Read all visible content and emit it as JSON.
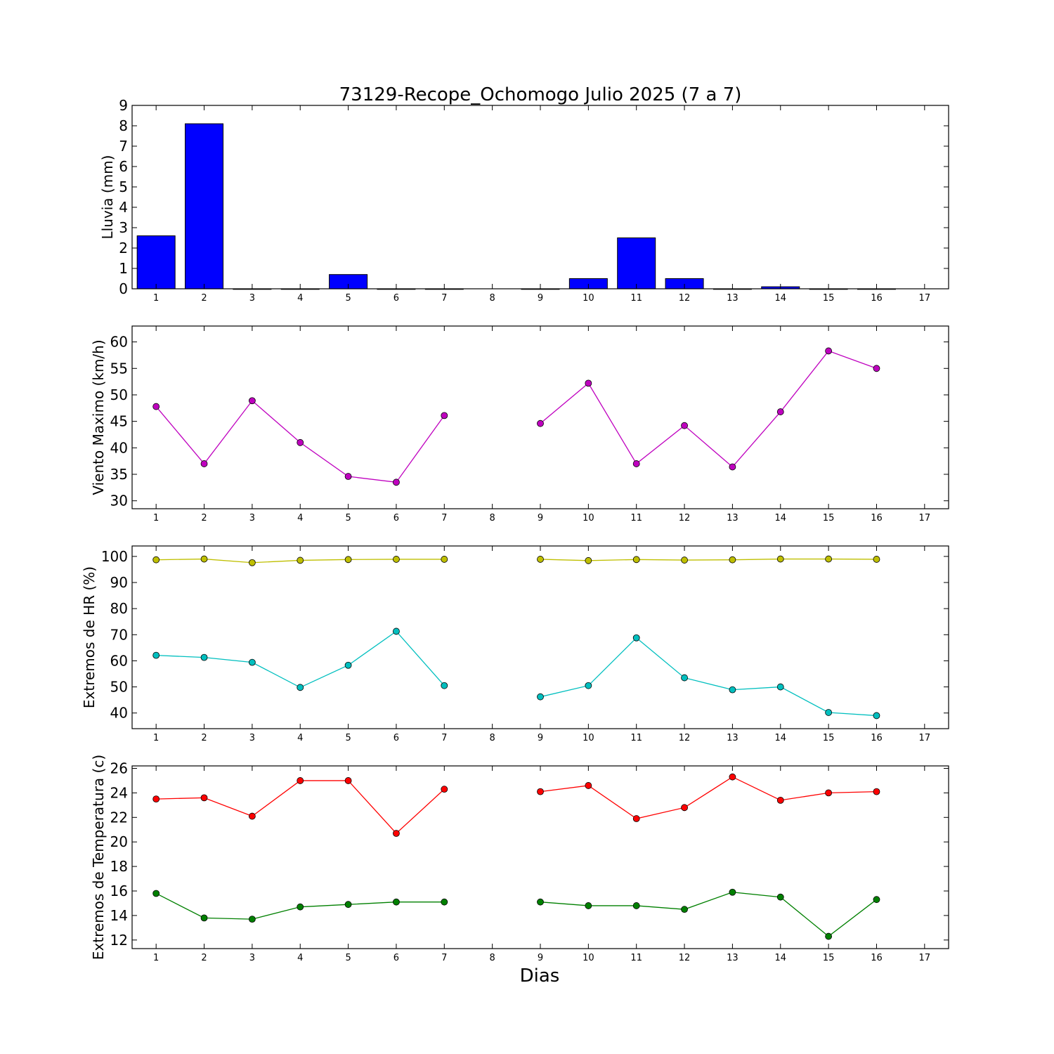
{
  "title": "73129-Recope_Ochomogo Julio 2025  (7 a 7)",
  "chart_data": [
    {
      "type": "bar",
      "ylabel": "Lluvia (mm)",
      "ylim": [
        0,
        9
      ],
      "yticks": [
        0,
        1,
        2,
        3,
        4,
        5,
        6,
        7,
        8,
        9
      ],
      "xlim": [
        0.5,
        17.5
      ],
      "xticks": [
        1,
        2,
        3,
        4,
        5,
        6,
        7,
        8,
        9,
        10,
        11,
        12,
        13,
        14,
        15,
        16,
        17
      ],
      "bar_color": "#0000ff",
      "x": [
        1,
        2,
        3,
        4,
        5,
        6,
        7,
        8,
        9,
        10,
        11,
        12,
        13,
        14,
        15,
        16
      ],
      "values": [
        2.6,
        8.1,
        0,
        0,
        0.7,
        0,
        0,
        null,
        0,
        0.5,
        2.5,
        0.5,
        0,
        0.1,
        0,
        0
      ]
    },
    {
      "type": "line",
      "ylabel": "Viento Maximo (km/h)",
      "ylim": [
        28.5,
        63
      ],
      "yticks": [
        30,
        35,
        40,
        45,
        50,
        55,
        60
      ],
      "xlim": [
        0.5,
        17.5
      ],
      "xticks": [
        1,
        2,
        3,
        4,
        5,
        6,
        7,
        8,
        9,
        10,
        11,
        12,
        13,
        14,
        15,
        16,
        17
      ],
      "x": [
        1,
        2,
        3,
        4,
        5,
        6,
        7,
        8,
        9,
        10,
        11,
        12,
        13,
        14,
        15,
        16
      ],
      "series": [
        {
          "color": "#bf00bf",
          "values": [
            47.8,
            37.0,
            48.9,
            41.0,
            34.6,
            33.5,
            46.1,
            null,
            44.6,
            52.2,
            37.0,
            44.2,
            36.4,
            46.8,
            58.3,
            55.0
          ]
        }
      ]
    },
    {
      "type": "line",
      "ylabel": "Extremos de HR (%)",
      "ylim": [
        34,
        104
      ],
      "yticks": [
        40,
        50,
        60,
        70,
        80,
        90,
        100
      ],
      "xlim": [
        0.5,
        17.5
      ],
      "xticks": [
        1,
        2,
        3,
        4,
        5,
        6,
        7,
        8,
        9,
        10,
        11,
        12,
        13,
        14,
        15,
        16,
        17
      ],
      "x": [
        1,
        2,
        3,
        4,
        5,
        6,
        7,
        8,
        9,
        10,
        11,
        12,
        13,
        14,
        15,
        16
      ],
      "series": [
        {
          "color": "#bfbf00",
          "values": [
            98.7,
            99.0,
            97.6,
            98.5,
            98.8,
            98.9,
            98.9,
            null,
            98.9,
            98.4,
            98.8,
            98.6,
            98.7,
            99.0,
            99.0,
            98.9
          ]
        },
        {
          "color": "#00bfbf",
          "values": [
            62.1,
            61.3,
            59.4,
            49.8,
            58.3,
            71.3,
            50.5,
            null,
            46.2,
            50.5,
            68.8,
            53.5,
            48.9,
            50.0,
            40.2,
            39.0
          ]
        }
      ]
    },
    {
      "type": "line",
      "ylabel": "Extremos de Temperatura (c)",
      "xlabel": "Dias",
      "ylim": [
        11.3,
        26.2
      ],
      "yticks": [
        12,
        14,
        16,
        18,
        20,
        22,
        24,
        26
      ],
      "xlim": [
        0.5,
        17.5
      ],
      "xticks": [
        1,
        2,
        3,
        4,
        5,
        6,
        7,
        8,
        9,
        10,
        11,
        12,
        13,
        14,
        15,
        16,
        17
      ],
      "x": [
        1,
        2,
        3,
        4,
        5,
        6,
        7,
        8,
        9,
        10,
        11,
        12,
        13,
        14,
        15,
        16
      ],
      "series": [
        {
          "color": "#ff0000",
          "values": [
            23.5,
            23.6,
            22.1,
            25.0,
            25.0,
            20.7,
            24.3,
            null,
            24.1,
            24.6,
            21.9,
            22.8,
            25.3,
            23.4,
            24.0,
            24.1
          ]
        },
        {
          "color": "#008000",
          "values": [
            15.8,
            13.8,
            13.7,
            14.7,
            14.9,
            15.1,
            15.1,
            null,
            15.1,
            14.8,
            14.8,
            14.5,
            15.9,
            15.5,
            12.3,
            15.3
          ]
        }
      ]
    }
  ]
}
